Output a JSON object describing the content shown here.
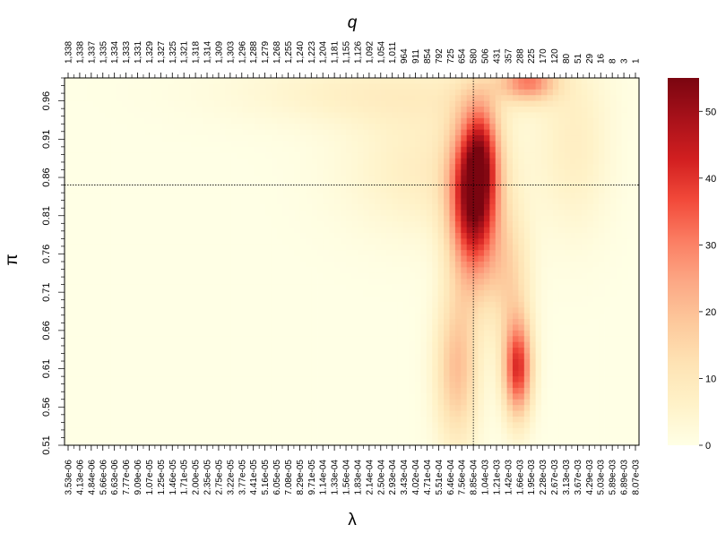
{
  "chart_data": {
    "type": "heatmap",
    "top_axis_label": "q",
    "xlabel": "λ",
    "ylabel": "π",
    "x_tick_labels": [
      "3.53e-06",
      "4.13e-06",
      "4.84e-06",
      "5.66e-06",
      "6.63e-06",
      "7.77e-06",
      "9.09e-06",
      "1.07e-05",
      "1.25e-05",
      "1.46e-05",
      "1.71e-05",
      "2.00e-05",
      "2.35e-05",
      "2.75e-05",
      "3.22e-05",
      "3.77e-05",
      "4.41e-05",
      "5.16e-05",
      "6.05e-05",
      "7.08e-05",
      "8.29e-05",
      "9.71e-05",
      "1.14e-04",
      "1.33e-04",
      "1.56e-04",
      "1.83e-04",
      "2.14e-04",
      "2.50e-04",
      "2.93e-04",
      "3.43e-04",
      "4.02e-04",
      "4.71e-04",
      "5.51e-04",
      "6.46e-04",
      "7.56e-04",
      "8.85e-04",
      "1.04e-03",
      "1.21e-03",
      "1.42e-03",
      "1.66e-03",
      "1.95e-03",
      "2.28e-03",
      "2.67e-03",
      "3.13e-03",
      "3.67e-03",
      "4.29e-03",
      "5.03e-03",
      "5.89e-03",
      "6.89e-03",
      "8.07e-03"
    ],
    "q_tick_labels": [
      "1,338",
      "1,338",
      "1,337",
      "1,335",
      "1,334",
      "1,333",
      "1,331",
      "1,329",
      "1,327",
      "1,325",
      "1,321",
      "1,318",
      "1,314",
      "1,309",
      "1,303",
      "1,296",
      "1,288",
      "1,279",
      "1,268",
      "1,255",
      "1,240",
      "1,223",
      "1,204",
      "1,181",
      "1,155",
      "1,126",
      "1,092",
      "1,054",
      "1,011",
      "964",
      "911",
      "854",
      "792",
      "725",
      "654",
      "580",
      "506",
      "431",
      "357",
      "288",
      "225",
      "170",
      "120",
      "80",
      "51",
      "29",
      "16",
      "8",
      "3",
      "1"
    ],
    "y_tick_labels": [
      "0.51",
      "0.56",
      "0.61",
      "0.66",
      "0.71",
      "0.76",
      "0.81",
      "0.86",
      "0.91",
      "0.96"
    ],
    "y_range": [
      0.51,
      0.99
    ],
    "colorbar": {
      "min": 0,
      "max": 55,
      "ticks": [
        "0",
        "10",
        "20",
        "30",
        "40",
        "50"
      ],
      "colors": [
        "#ffffe5",
        "#fff2c8",
        "#fee3b4",
        "#fdc99c",
        "#fca885",
        "#fb7e63",
        "#f24a3a",
        "#d21f20",
        "#a8111a",
        "#7a0510"
      ]
    },
    "reference_lines": {
      "x": "8.85e-04",
      "y": 0.85
    },
    "grid_resolution": {
      "cols": 100,
      "rows": 64
    },
    "z_peak_components": [
      {
        "x_log10": -3.05,
        "y": 0.83,
        "sx": 0.1,
        "sy": 0.075,
        "amp": 52
      },
      {
        "x_log10": -3.0,
        "y": 0.895,
        "sx": 0.07,
        "sy": 0.045,
        "amp": 18
      },
      {
        "x_log10": -2.79,
        "y": 0.61,
        "sx": 0.06,
        "sy": 0.045,
        "amp": 40
      },
      {
        "x_log10": -2.84,
        "y": 0.73,
        "sx": 0.09,
        "sy": 0.06,
        "amp": 14
      },
      {
        "x_log10": -3.15,
        "y": 0.61,
        "sx": 0.09,
        "sy": 0.07,
        "amp": 20
      },
      {
        "x_log10": -2.73,
        "y": 0.985,
        "sx": 0.12,
        "sy": 0.018,
        "amp": 28
      },
      {
        "x_log10": -3.6,
        "y": 0.97,
        "sx": 0.6,
        "sy": 0.03,
        "amp": 7
      },
      {
        "x_log10": -3.3,
        "y": 0.87,
        "sx": 0.35,
        "sy": 0.06,
        "amp": 8
      },
      {
        "x_log10": -2.45,
        "y": 0.9,
        "sx": 0.15,
        "sy": 0.08,
        "amp": 7
      }
    ]
  }
}
